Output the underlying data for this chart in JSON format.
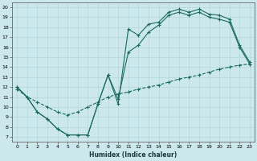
{
  "xlabel": "Humidex (Indice chaleur)",
  "bg_color": "#cce8ec",
  "grid_color": "#b0d8dc",
  "line_color": "#1a6b5a",
  "xlim": [
    -0.5,
    23.5
  ],
  "ylim": [
    6.5,
    20.5
  ],
  "yticks": [
    7,
    8,
    9,
    10,
    11,
    12,
    13,
    14,
    15,
    16,
    17,
    18,
    19,
    20
  ],
  "xticks": [
    0,
    1,
    2,
    3,
    4,
    5,
    6,
    7,
    8,
    9,
    10,
    11,
    12,
    13,
    14,
    15,
    16,
    17,
    18,
    19,
    20,
    21,
    22,
    23
  ],
  "line1_x": [
    0,
    1,
    2,
    3,
    4,
    5,
    6,
    7,
    8,
    9,
    10,
    11,
    12,
    13,
    14,
    15,
    16,
    17,
    18,
    19,
    20,
    21,
    22,
    23
  ],
  "line1_y": [
    12.0,
    11.0,
    9.5,
    8.8,
    7.8,
    7.2,
    7.2,
    7.2,
    10.3,
    13.2,
    10.3,
    17.8,
    17.2,
    18.3,
    18.5,
    19.5,
    19.8,
    19.5,
    19.8,
    19.3,
    19.2,
    18.8,
    16.2,
    14.5
  ],
  "line2_x": [
    0,
    1,
    2,
    3,
    4,
    5,
    6,
    7,
    8,
    9,
    10,
    11,
    12,
    13,
    14,
    15,
    16,
    17,
    18,
    19,
    20,
    21,
    22,
    23
  ],
  "line2_y": [
    12.0,
    11.0,
    9.5,
    8.8,
    7.8,
    7.2,
    7.2,
    7.2,
    10.3,
    13.2,
    10.8,
    15.5,
    16.2,
    17.5,
    18.2,
    19.2,
    19.5,
    19.2,
    19.5,
    19.0,
    18.8,
    18.5,
    16.0,
    14.3
  ],
  "line3_x": [
    0,
    1,
    2,
    3,
    4,
    5,
    6,
    7,
    8,
    9,
    10,
    11,
    12,
    13,
    14,
    15,
    16,
    17,
    18,
    19,
    20,
    21,
    22,
    23
  ],
  "line3_y": [
    11.8,
    11.0,
    10.5,
    10.0,
    9.5,
    9.2,
    9.5,
    10.0,
    10.5,
    11.0,
    11.3,
    11.5,
    11.8,
    12.0,
    12.2,
    12.5,
    12.8,
    13.0,
    13.2,
    13.5,
    13.8,
    14.0,
    14.2,
    14.3
  ]
}
